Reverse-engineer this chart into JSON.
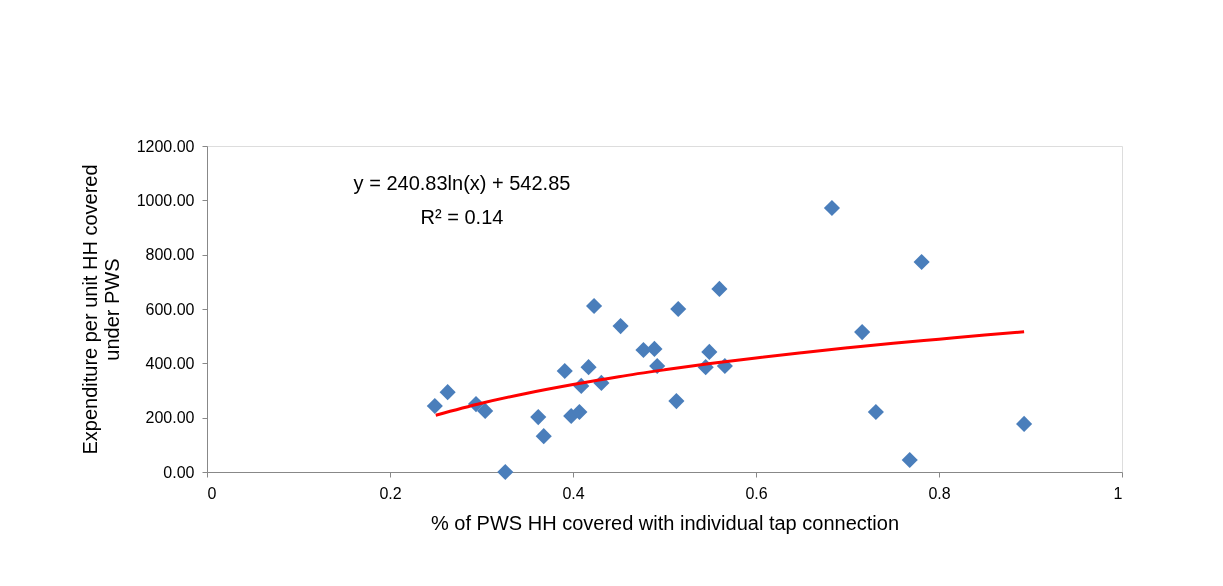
{
  "chart_data": {
    "type": "scatter",
    "xlabel": "% of PWS HH covered with individual  tap connection",
    "ylabel": "Expenditure per unit HH covered under PWS",
    "annotations": [
      "y = 240.83ln(x) + 542.85",
      "R² = 0.14"
    ],
    "xlim": [
      0,
      1
    ],
    "xticks": [
      0,
      0.2,
      0.4,
      0.6,
      0.8,
      1
    ],
    "ylim": [
      0,
      1200
    ],
    "yticks": [
      {
        "value": 0,
        "label": "0.00"
      },
      {
        "value": 200,
        "label": "200.00"
      },
      {
        "value": 400,
        "label": "400.00"
      },
      {
        "value": 600,
        "label": "600.00"
      },
      {
        "value": 800,
        "label": "800.00"
      },
      {
        "value": 1000,
        "label": "1000.00"
      },
      {
        "value": 1200,
        "label": "1200.00"
      }
    ],
    "grid": false,
    "marker": "diamond",
    "series": [
      {
        "color": "#4a7ebb",
        "x": [
          0.249,
          0.263,
          0.294,
          0.304,
          0.326,
          0.362,
          0.368,
          0.391,
          0.398,
          0.407,
          0.409,
          0.417,
          0.423,
          0.431,
          0.452,
          0.477,
          0.489,
          0.492,
          0.513,
          0.515,
          0.549,
          0.545,
          0.566,
          0.56,
          0.683,
          0.781,
          0.716,
          0.731,
          0.768,
          0.893
        ],
        "values": [
          243,
          294,
          250,
          225,
          0,
          202,
          132,
          372,
          206,
          221,
          317,
          386,
          611,
          328,
          537,
          449,
          453,
          390,
          261,
          600,
          442,
          386,
          390,
          674,
          972,
          773,
          515,
          221,
          44,
          177
        ]
      },
      {
        "type": "line",
        "color": "#ff0000",
        "marker": "none",
        "line_style": "solid",
        "x": [
          0.25,
          0.3,
          0.35,
          0.4,
          0.45,
          0.5,
          0.55,
          0.6,
          0.65,
          0.7,
          0.75,
          0.8,
          0.85,
          0.893
        ],
        "values": [
          209,
          253,
          290,
          322,
          351,
          376,
          399,
          420,
          439,
          457,
          474,
          489,
          504,
          516
        ]
      }
    ]
  }
}
